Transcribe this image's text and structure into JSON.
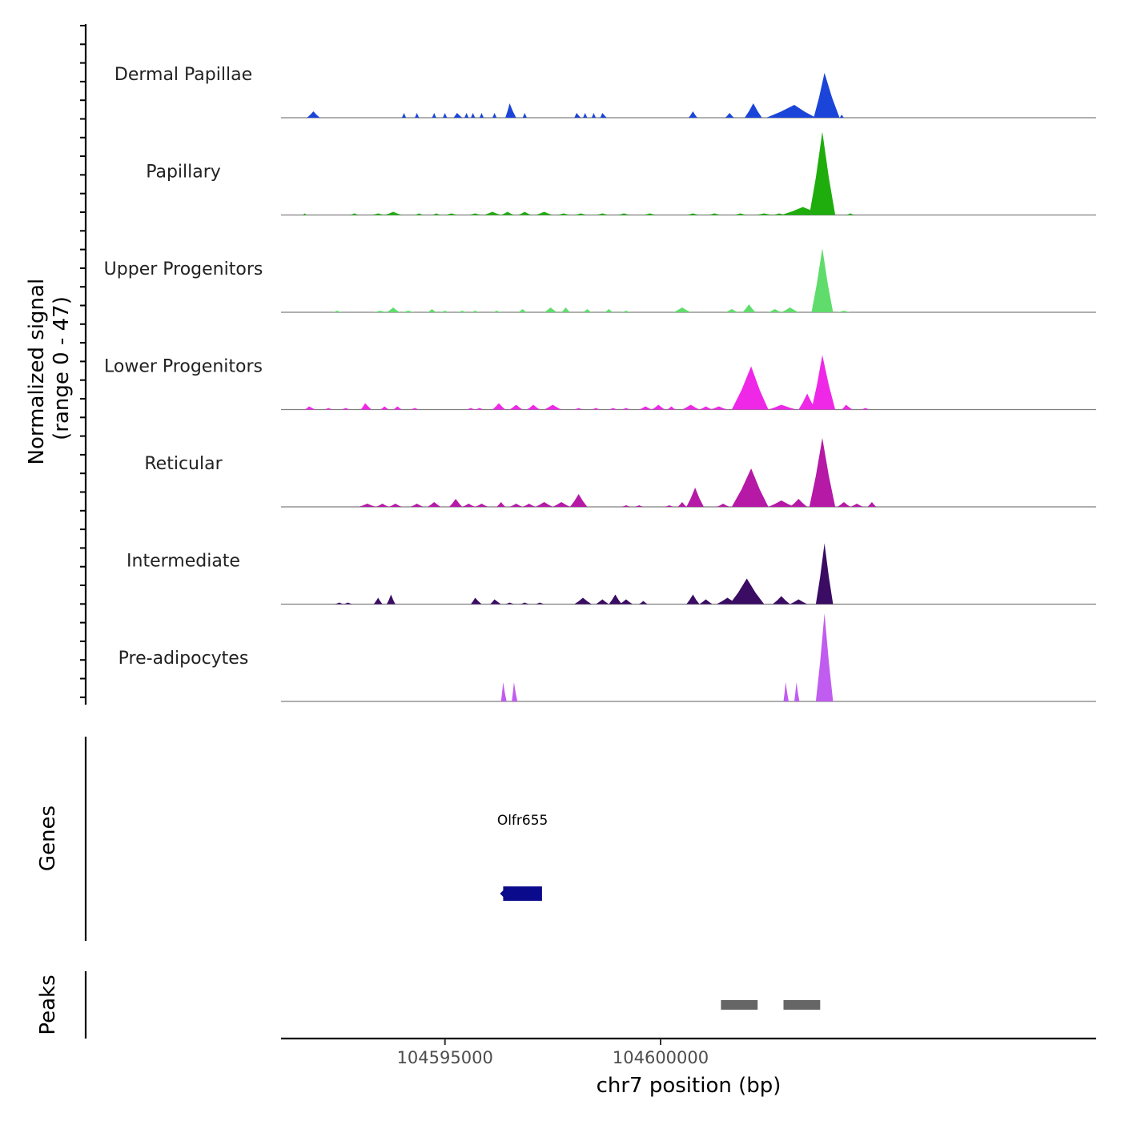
{
  "chart_data": {
    "type": "area",
    "title": "",
    "ylabel": "Normalized signal\n(range 0 - 47)",
    "ylabel_lines": [
      "Normalized signal",
      "(range 0 - 47)"
    ],
    "y_range": [
      0,
      47
    ],
    "xlabel": "chr7 position (bp)",
    "xlim": [
      104591200,
      104610100
    ],
    "x_ticks": [
      104595000,
      104600000
    ],
    "x_tick_labels": [
      "104595000",
      "104600000"
    ],
    "tracks": [
      {
        "name": "Dermal Papillae",
        "color": "#1b45d9",
        "peaks": [
          [
            104591800,
            104591950,
            104592100,
            4
          ],
          [
            104594000,
            104594050,
            104594100,
            3
          ],
          [
            104594300,
            104594350,
            104594400,
            3
          ],
          [
            104594700,
            104594750,
            104594800,
            3
          ],
          [
            104594950,
            104595000,
            104595050,
            3
          ],
          [
            104595200,
            104595280,
            104595400,
            3
          ],
          [
            104595450,
            104595500,
            104595550,
            3
          ],
          [
            104595600,
            104595650,
            104595700,
            3
          ],
          [
            104595800,
            104595850,
            104595900,
            3
          ],
          [
            104596100,
            104596150,
            104596200,
            3
          ],
          [
            104596400,
            104596500,
            104596650,
            9
          ],
          [
            104596800,
            104596850,
            104596900,
            3
          ],
          [
            104598000,
            104598050,
            104598150,
            3
          ],
          [
            104598200,
            104598250,
            104598300,
            3
          ],
          [
            104598400,
            104598450,
            104598500,
            3
          ],
          [
            104598600,
            104598650,
            104598750,
            3
          ],
          [
            104600650,
            104600750,
            104600850,
            4
          ],
          [
            104601500,
            104601600,
            104601700,
            3
          ],
          [
            104601950,
            104602150,
            104602350,
            9
          ],
          [
            104602450,
            104603100,
            104603600,
            8
          ],
          [
            104603550,
            104603800,
            104604150,
            28
          ],
          [
            104604150,
            104604200,
            104604250,
            2
          ]
        ]
      },
      {
        "name": "Papillary",
        "color": "#1ead0d",
        "peaks": [
          [
            104591700,
            104591750,
            104591800,
            1
          ],
          [
            104592800,
            104592900,
            104593000,
            1
          ],
          [
            104593300,
            104593450,
            104593600,
            1
          ],
          [
            104593600,
            104593800,
            104594000,
            2
          ],
          [
            104594300,
            104594400,
            104594500,
            1
          ],
          [
            104594700,
            104594800,
            104594900,
            1
          ],
          [
            104595000,
            104595150,
            104595300,
            1
          ],
          [
            104595550,
            104595700,
            104595850,
            1
          ],
          [
            104595900,
            104596100,
            104596300,
            2
          ],
          [
            104596300,
            104596450,
            104596600,
            2
          ],
          [
            104596700,
            104596850,
            104597000,
            2
          ],
          [
            104597100,
            104597300,
            104597500,
            2
          ],
          [
            104597600,
            104597750,
            104597900,
            1
          ],
          [
            104598000,
            104598150,
            104598300,
            1
          ],
          [
            104598500,
            104598650,
            104598800,
            1
          ],
          [
            104599000,
            104599150,
            104599300,
            1
          ],
          [
            104599600,
            104599750,
            104599900,
            1
          ],
          [
            104600600,
            104600750,
            104600900,
            1
          ],
          [
            104601100,
            104601250,
            104601400,
            1
          ],
          [
            104601700,
            104601850,
            104602000,
            1
          ],
          [
            104602200,
            104602400,
            104602600,
            1
          ],
          [
            104602600,
            104602750,
            104602900,
            1
          ],
          [
            104602800,
            104603300,
            104603800,
            5
          ],
          [
            104603450,
            104603750,
            104604050,
            52
          ],
          [
            104604300,
            104604400,
            104604500,
            1
          ]
        ]
      },
      {
        "name": "Upper Progenitors",
        "color": "#5fdc6b",
        "peaks": [
          [
            104592400,
            104592500,
            104592600,
            1
          ],
          [
            104593350,
            104593500,
            104593650,
            1
          ],
          [
            104593650,
            104593800,
            104593950,
            3
          ],
          [
            104594000,
            104594150,
            104594300,
            1
          ],
          [
            104594600,
            104594700,
            104594800,
            2
          ],
          [
            104594900,
            104595000,
            104595100,
            1
          ],
          [
            104595300,
            104595400,
            104595500,
            1
          ],
          [
            104595600,
            104595700,
            104595800,
            1
          ],
          [
            104596100,
            104596200,
            104596300,
            1
          ],
          [
            104596700,
            104596800,
            104596900,
            2
          ],
          [
            104597300,
            104597450,
            104597600,
            3
          ],
          [
            104597700,
            104597800,
            104597900,
            3
          ],
          [
            104598200,
            104598300,
            104598400,
            2
          ],
          [
            104598700,
            104598800,
            104598900,
            2
          ],
          [
            104599100,
            104599200,
            104599300,
            1
          ],
          [
            104600300,
            104600500,
            104600700,
            3
          ],
          [
            104601500,
            104601650,
            104601800,
            2
          ],
          [
            104601900,
            104602050,
            104602200,
            5
          ],
          [
            104602500,
            104602650,
            104602800,
            2
          ],
          [
            104602800,
            104603000,
            104603200,
            3
          ],
          [
            104603500,
            104603750,
            104604000,
            40
          ],
          [
            104604100,
            104604250,
            104604400,
            1
          ]
        ]
      },
      {
        "name": "Lower Progenitors",
        "color": "#ef28e8",
        "peaks": [
          [
            104591750,
            104591850,
            104592000,
            2
          ],
          [
            104592200,
            104592300,
            104592400,
            1
          ],
          [
            104592600,
            104592700,
            104592800,
            1
          ],
          [
            104593050,
            104593150,
            104593300,
            4
          ],
          [
            104593500,
            104593600,
            104593700,
            2
          ],
          [
            104593800,
            104593900,
            104594000,
            2
          ],
          [
            104594200,
            104594300,
            104594400,
            1
          ],
          [
            104595500,
            104595600,
            104595700,
            1
          ],
          [
            104595700,
            104595800,
            104595900,
            1
          ],
          [
            104596100,
            104596250,
            104596400,
            4
          ],
          [
            104596500,
            104596650,
            104596800,
            3
          ],
          [
            104596900,
            104597050,
            104597200,
            3
          ],
          [
            104597300,
            104597500,
            104597700,
            3
          ],
          [
            104598000,
            104598100,
            104598200,
            1
          ],
          [
            104598400,
            104598500,
            104598600,
            1
          ],
          [
            104598800,
            104598900,
            104599000,
            1
          ],
          [
            104599100,
            104599200,
            104599300,
            1
          ],
          [
            104599500,
            104599650,
            104599800,
            2
          ],
          [
            104599800,
            104599950,
            104600100,
            3
          ],
          [
            104600150,
            104600250,
            104600350,
            2
          ],
          [
            104600500,
            104600700,
            104600900,
            3
          ],
          [
            104600900,
            104601050,
            104601200,
            2
          ],
          [
            104601150,
            104601350,
            104601550,
            2
          ],
          [
            104601650,
            104602100,
            104602500,
            27
          ],
          [
            104602500,
            104602800,
            104603150,
            3
          ],
          [
            104603200,
            104603400,
            104603600,
            10
          ],
          [
            104603500,
            104603750,
            104604050,
            34
          ],
          [
            104604200,
            104604300,
            104604450,
            3
          ],
          [
            104604650,
            104604750,
            104604850,
            1
          ]
        ]
      },
      {
        "name": "Reticular",
        "color": "#b519a6",
        "peaks": [
          [
            104593000,
            104593200,
            104593400,
            2
          ],
          [
            104593400,
            104593550,
            104593700,
            2
          ],
          [
            104593700,
            104593850,
            104594000,
            2
          ],
          [
            104594200,
            104594350,
            104594500,
            2
          ],
          [
            104594600,
            104594750,
            104594900,
            3
          ],
          [
            104595100,
            104595250,
            104595400,
            5
          ],
          [
            104595400,
            104595550,
            104595700,
            2
          ],
          [
            104595700,
            104595850,
            104596000,
            2
          ],
          [
            104596200,
            104596300,
            104596400,
            3
          ],
          [
            104596500,
            104596650,
            104596800,
            2
          ],
          [
            104596800,
            104596950,
            104597100,
            2
          ],
          [
            104597100,
            104597300,
            104597500,
            3
          ],
          [
            104597500,
            104597700,
            104597900,
            3
          ],
          [
            104597900,
            104598100,
            104598300,
            8
          ],
          [
            104599100,
            104599200,
            104599300,
            1
          ],
          [
            104599400,
            104599500,
            104599600,
            1
          ],
          [
            104600100,
            104600200,
            104600300,
            1
          ],
          [
            104600400,
            104600500,
            104600600,
            3
          ],
          [
            104600600,
            104600800,
            104601000,
            12
          ],
          [
            104601300,
            104601450,
            104601600,
            2
          ],
          [
            104601650,
            104602100,
            104602500,
            24
          ],
          [
            104602500,
            104602800,
            104603100,
            4
          ],
          [
            104603000,
            104603200,
            104603400,
            5
          ],
          [
            104603450,
            104603750,
            104604050,
            43
          ],
          [
            104604100,
            104604250,
            104604400,
            3
          ],
          [
            104604400,
            104604550,
            104604700,
            2
          ],
          [
            104604800,
            104604900,
            104605000,
            3
          ]
        ]
      },
      {
        "name": "Intermediate",
        "color": "#3a0c63",
        "peaks": [
          [
            104592450,
            104592550,
            104592650,
            1
          ],
          [
            104592650,
            104592750,
            104592850,
            1
          ],
          [
            104593350,
            104593450,
            104593550,
            4
          ],
          [
            104593650,
            104593750,
            104593850,
            6
          ],
          [
            104595600,
            104595700,
            104595850,
            4
          ],
          [
            104596050,
            104596150,
            104596300,
            3
          ],
          [
            104596400,
            104596500,
            104596600,
            1
          ],
          [
            104596750,
            104596850,
            104596950,
            1
          ],
          [
            104597100,
            104597200,
            104597300,
            1
          ],
          [
            104598000,
            104598200,
            104598400,
            4
          ],
          [
            104598500,
            104598650,
            104598800,
            3
          ],
          [
            104598800,
            104598950,
            104599100,
            6
          ],
          [
            104599050,
            104599200,
            104599350,
            3
          ],
          [
            104599500,
            104599600,
            104599700,
            2
          ],
          [
            104600600,
            104600750,
            104600900,
            6
          ],
          [
            104600900,
            104601050,
            104601200,
            3
          ],
          [
            104601300,
            104601550,
            104601800,
            4
          ],
          [
            104601600,
            104602000,
            104602400,
            16
          ],
          [
            104602600,
            104602800,
            104603000,
            5
          ],
          [
            104603000,
            104603200,
            104603400,
            3
          ],
          [
            104603600,
            104603800,
            104604000,
            38
          ]
        ]
      },
      {
        "name": "Pre-adipocytes",
        "color": "#c15cf0",
        "peaks": [
          [
            104596300,
            104596350,
            104596430,
            12
          ],
          [
            104596550,
            104596600,
            104596680,
            12
          ],
          [
            104602850,
            104602900,
            104602970,
            12
          ],
          [
            104603100,
            104603150,
            104603220,
            12
          ],
          [
            104603600,
            104603800,
            104604000,
            55
          ]
        ]
      }
    ],
    "genes": [
      {
        "name": "Olfr655",
        "start": 104596350,
        "end": 104597250,
        "strand": "-"
      }
    ],
    "gene_track_label": "Genes",
    "peaks_track_label": "Peaks",
    "called_peaks": [
      {
        "start": 104601400,
        "end": 104602250
      },
      {
        "start": 104602850,
        "end": 104603700
      }
    ]
  }
}
